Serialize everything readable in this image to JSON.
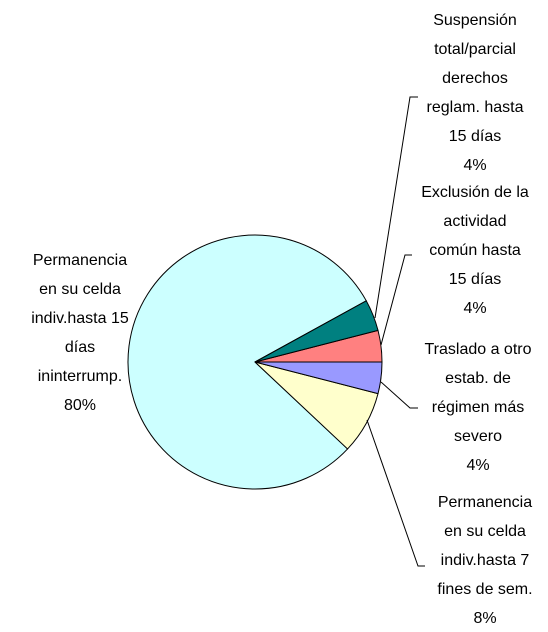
{
  "chart_data": {
    "type": "pie",
    "categories": [
      "Suspensión\ntotal/parcial\nderechos\nreglam. hasta\n15 días",
      "Exclusión de la\nactividad\ncomún hasta\n15 días",
      "Traslado a otro\nestab. de\nrégimen más\nsevero",
      "Permanencia\nen su celda\nindiv.hasta 7\nfines de sem.",
      "Permanencia\nen su celda\nindiv.hasta 15\ndías\nininterrump."
    ],
    "values": [
      4,
      4,
      4,
      8,
      80
    ],
    "value_labels": [
      "4%",
      "4%",
      "4%",
      "8%",
      "80%"
    ],
    "colors": [
      "#008080",
      "#ff8080",
      "#9999ff",
      "#ffffcc",
      "#ccffff"
    ]
  }
}
